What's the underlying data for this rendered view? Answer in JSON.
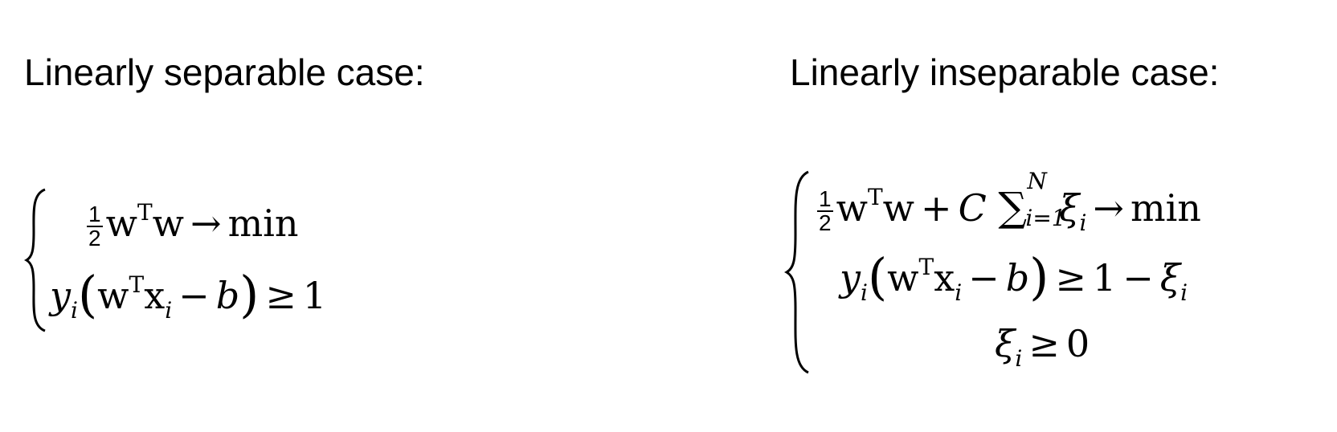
{
  "left": {
    "heading": "Linearly separable case:",
    "objective": {
      "frac_num": "1",
      "frac_den": "2",
      "w": "w",
      "transpose": "T",
      "w2": "w",
      "arrow": "→",
      "min": "min"
    },
    "constraint": {
      "y": "y",
      "i": "i",
      "lparen": "(",
      "w": "w",
      "transpose": "T",
      "x": "x",
      "xi": "i",
      "minus": "−",
      "b": "b",
      "rparen": ")",
      "geq": "≥",
      "one": "1"
    }
  },
  "right": {
    "heading": "Linearly inseparable case:",
    "objective": {
      "frac_num": "1",
      "frac_den": "2",
      "w": "w",
      "transpose": "T",
      "w2": "w",
      "plus": "+",
      "C": "C",
      "sum": "∑",
      "sum_upper": "N",
      "sum_lower": "i=1",
      "xi": "ξ",
      "xi_sub": "i",
      "arrow": "→",
      "min": "min"
    },
    "constraint": {
      "y": "y",
      "i": "i",
      "lparen": "(",
      "w": "w",
      "transpose": "T",
      "x": "x",
      "xi": "i",
      "minus": "−",
      "b": "b",
      "rparen": ")",
      "geq": "≥",
      "one": "1",
      "minus2": "−",
      "slack": "ξ",
      "slack_sub": "i"
    },
    "nonneg": {
      "slack": "ξ",
      "slack_sub": "i",
      "geq": "≥",
      "zero": "0"
    }
  }
}
